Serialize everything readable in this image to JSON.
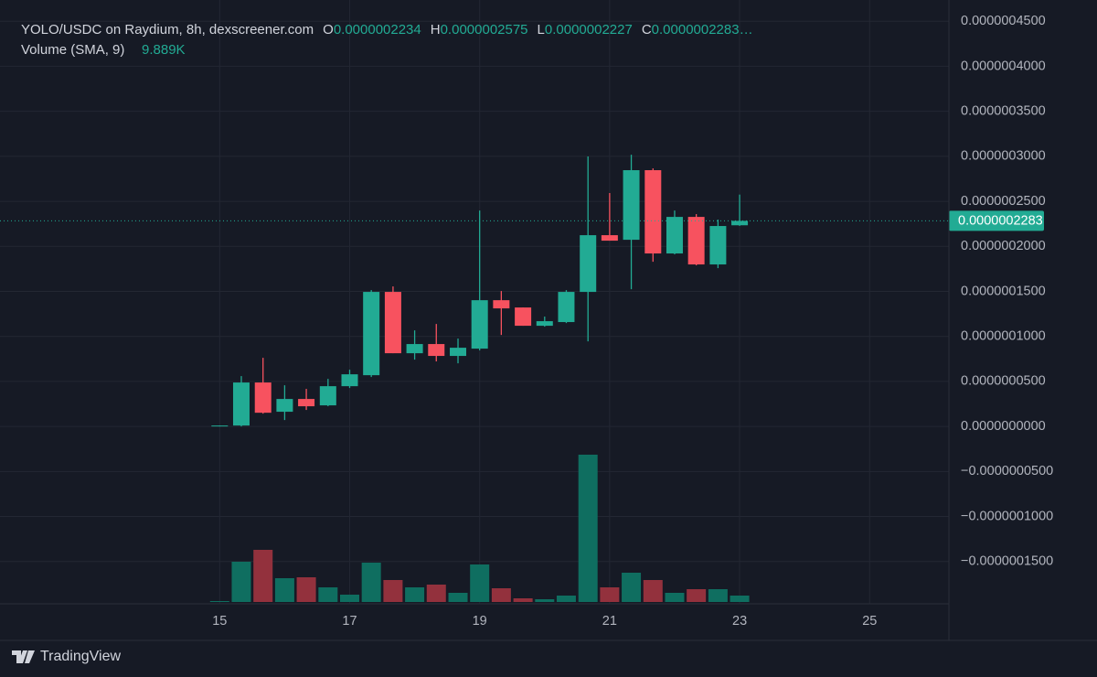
{
  "chart_data": {
    "type": "candlestick",
    "title": "YOLO/USDC on Raydium, 8h, dexscreener.com",
    "ohlc_legend": [
      {
        "key": "O",
        "label": "0.0000002234"
      },
      {
        "key": "H",
        "label": "0.0000002575"
      },
      {
        "key": "L",
        "label": "0.0000002227"
      },
      {
        "key": "C",
        "label": "0.0000002283…"
      }
    ],
    "volume_title": "Volume (SMA, 9)",
    "volume_sma": {
      "value": 9889,
      "label": "9.889K"
    },
    "x": [
      15,
      15.333,
      15.667,
      16,
      16.333,
      16.667,
      17,
      17.333,
      17.667,
      18,
      18.333,
      18.667,
      19,
      19.333,
      19.667,
      20,
      20.333,
      20.667,
      21,
      21.333,
      21.667,
      22,
      22.333,
      22.667,
      23
    ],
    "open": [
      0,
      1e-09,
      4.88e-08,
      1.63e-08,
      3.05e-08,
      2.34e-08,
      4.47e-08,
      5.69e-08,
      1.494e-07,
      8.13e-08,
      9.15e-08,
      7.83e-08,
      8.64e-08,
      1.402e-07,
      1.321e-07,
      1.118e-07,
      1.159e-07,
      1.494e-07,
      2.124e-07,
      2.073e-07,
      2.846e-07,
      1.921e-07,
      2.327e-07,
      1.799e-07,
      2.234e-07
    ],
    "high": [
      1e-09,
      5.59e-08,
      7.62e-08,
      4.57e-08,
      4.17e-08,
      5.28e-08,
      6.3e-08,
      1.514e-07,
      1.555e-07,
      1.067e-07,
      1.138e-07,
      9.76e-08,
      2.398e-07,
      1.504e-07,
      1.321e-07,
      1.22e-07,
      1.514e-07,
      2.998e-07,
      2.592e-07,
      3.018e-07,
      2.866e-07,
      2.398e-07,
      2.358e-07,
      2.297e-07,
      2.575e-07
    ],
    "low": [
      0,
      0,
      1.42e-08,
      7.1e-09,
      1.83e-08,
      2.24e-08,
      4.27e-08,
      5.49e-08,
      8.13e-08,
      7.42e-08,
      7.22e-08,
      7.01e-08,
      8.44e-08,
      1.016e-07,
      1.118e-07,
      1.108e-07,
      1.148e-07,
      9.45e-08,
      2.063e-07,
      1.524e-07,
      1.829e-07,
      1.911e-07,
      1.789e-07,
      1.758e-07,
      2.227e-07
    ],
    "close": [
      1e-09,
      4.88e-08,
      1.52e-08,
      3.05e-08,
      2.24e-08,
      4.47e-08,
      5.79e-08,
      1.494e-07,
      8.13e-08,
      9.15e-08,
      7.83e-08,
      8.74e-08,
      1.402e-07,
      1.311e-07,
      1.118e-07,
      1.169e-07,
      1.494e-07,
      2.124e-07,
      2.063e-07,
      2.846e-07,
      1.921e-07,
      2.327e-07,
      1.799e-07,
      2.226e-07,
      2.283e-07
    ],
    "volume": [
      312,
      13728,
      17784,
      8112,
      8424,
      4992,
      2496,
      13416,
      7488,
      4992,
      5928,
      3120,
      12792,
      4680,
      1248,
      936,
      2184,
      50232,
      4992,
      9984,
      7488,
      3120,
      4368,
      4368,
      2184
    ],
    "up_color": "#22ab94",
    "down_color": "#f7525f",
    "up_volume_color": "#0f6e60",
    "down_volume_color": "#93313d",
    "last_price": {
      "value": 2.283e-07,
      "label": "0.0000002283"
    },
    "xlim": [
      11.62,
      26.22
    ],
    "xticks": [
      15,
      17,
      19,
      21,
      23,
      25
    ],
    "ylim": [
      -1.97e-07,
      4.736e-07
    ],
    "yticks": [
      {
        "value": 4.5e-07,
        "label": "0.0000004500"
      },
      {
        "value": 4e-07,
        "label": "0.0000004000"
      },
      {
        "value": 3.5e-07,
        "label": "0.0000003500"
      },
      {
        "value": 3e-07,
        "label": "0.0000003000"
      },
      {
        "value": 2.5e-07,
        "label": "0.0000002500"
      },
      {
        "value": 2e-07,
        "label": "0.0000002000"
      },
      {
        "value": 1.5e-07,
        "label": "0.0000001500"
      },
      {
        "value": 1e-07,
        "label": "0.0000001000"
      },
      {
        "value": 5e-08,
        "label": "0.0000000500"
      },
      {
        "value": 0,
        "label": "0.0000000000"
      },
      {
        "value": -5e-08,
        "label": "−0.0000000500"
      },
      {
        "value": -1e-07,
        "label": "−0.0000001000"
      },
      {
        "value": -1.5e-07,
        "label": "−0.0000001500"
      }
    ],
    "grid": true,
    "brand": "TradingView"
  }
}
